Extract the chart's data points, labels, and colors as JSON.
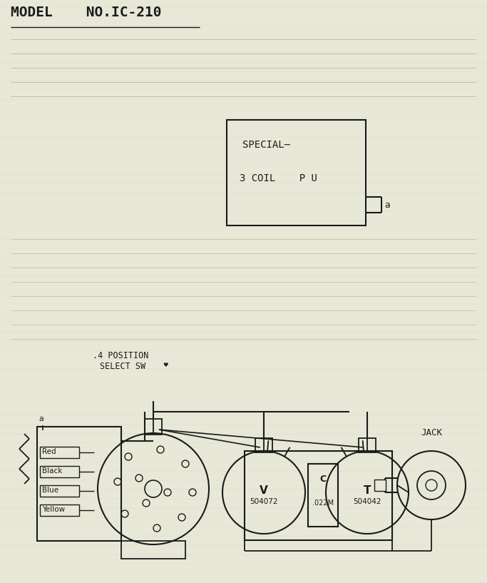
{
  "title": "MODEL    NO.IC-210",
  "bg_color": "#e8e8d8",
  "line_color": "#1a1a1a",
  "pickup_labels": [
    "Red",
    "Black",
    "Blue",
    "Yellow"
  ],
  "sw_label1": ".4 POSITION",
  "sw_label2": "SELECT SW",
  "vol_label": "V",
  "vol_num": "504072",
  "cap_label": "C",
  "cap_val": ".022M",
  "tone_label": "T",
  "tone_num": "504042",
  "jack_label": "JACK"
}
